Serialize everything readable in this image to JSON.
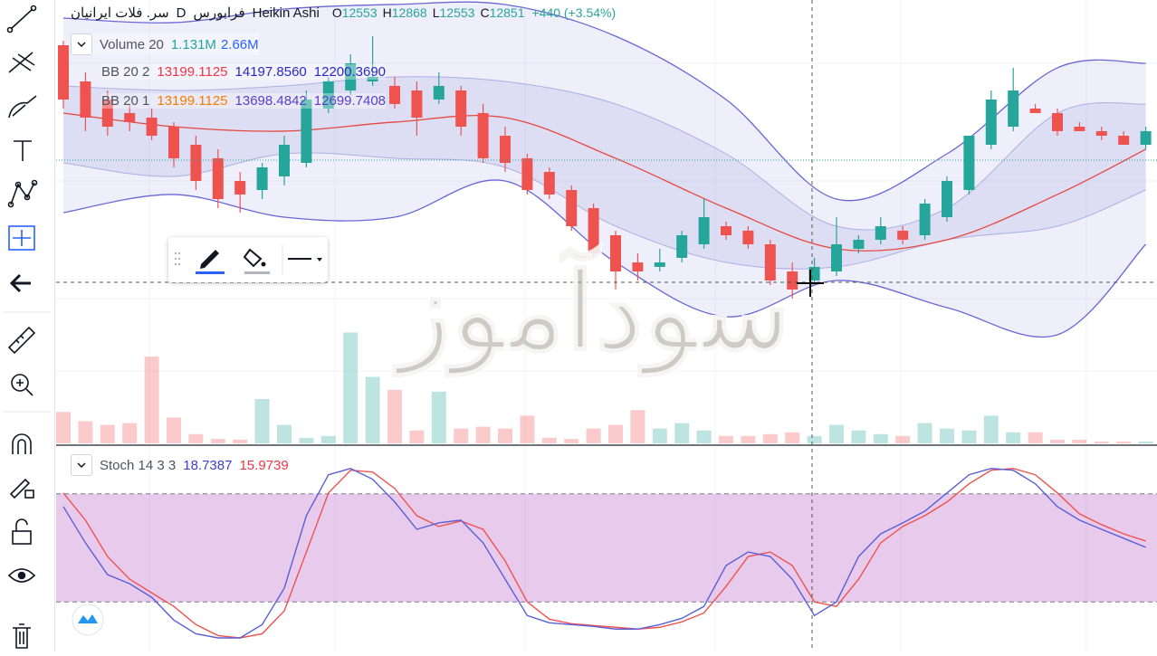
{
  "header": {
    "symbol": "سر. فلات ایرانیان",
    "interval": "D",
    "exchange": "فرابورس",
    "chart_style": "Heikin Ashi",
    "ohlc": [
      {
        "label": "O",
        "value": "12553"
      },
      {
        "label": "H",
        "value": "12868"
      },
      {
        "label": "L",
        "value": "12553"
      },
      {
        "label": "C",
        "value": "12851"
      }
    ],
    "change": "+440 (+3.54%)"
  },
  "legend": {
    "volume": {
      "name": "Volume 20",
      "values": [
        "1.131M",
        "2.66M"
      ]
    },
    "bb2": {
      "name": "BB 20 2",
      "values": [
        "13199.1125",
        "14197.8560",
        "12200.3690"
      ]
    },
    "bb1": {
      "name": "BB 20 1",
      "values": [
        "13199.1125",
        "13698.4842",
        "12699.7408"
      ]
    },
    "stoch": {
      "name": "Stoch 14 3 3",
      "values": [
        "18.7387",
        "15.9739"
      ]
    }
  },
  "watermark": "سودآموز",
  "chart": {
    "up_color": "#26a69a",
    "down_color": "#ef5350",
    "price_ylim": [
      9012,
      15137
    ],
    "candles": [
      [
        14512,
        14575,
        13637,
        13762
      ],
      [
        14012,
        14137,
        13325,
        13512
      ],
      [
        13762,
        13887,
        13262,
        13387
      ],
      [
        13575,
        13700,
        13325,
        13450
      ],
      [
        13512,
        13637,
        13200,
        13262
      ],
      [
        13387,
        13450,
        12825,
        12950
      ],
      [
        13137,
        13262,
        12512,
        12637
      ],
      [
        12950,
        13075,
        12262,
        12387
      ],
      [
        12637,
        12762,
        12200,
        12450
      ],
      [
        12512,
        12887,
        12387,
        12825
      ],
      [
        12700,
        13262,
        12575,
        13137
      ],
      [
        12887,
        13887,
        12825,
        13762
      ],
      [
        13637,
        14075,
        13575,
        14012
      ],
      [
        13887,
        14387,
        13825,
        14262
      ],
      [
        14012,
        14637,
        13950,
        14075
      ],
      [
        13950,
        14075,
        13637,
        13700
      ],
      [
        13887,
        14012,
        13262,
        13512
      ],
      [
        13762,
        14137,
        13700,
        13950
      ],
      [
        13887,
        13950,
        13262,
        13387
      ],
      [
        13575,
        13700,
        12887,
        12950
      ],
      [
        13262,
        13387,
        12762,
        12887
      ],
      [
        12950,
        13012,
        12450,
        12512
      ],
      [
        12762,
        12825,
        12387,
        12450
      ],
      [
        12512,
        12575,
        11950,
        12012
      ],
      [
        12262,
        12325,
        11575,
        11637
      ],
      [
        11887,
        11950,
        11137,
        11387
      ],
      [
        11512,
        11637,
        11262,
        11387
      ],
      [
        11450,
        11700,
        11387,
        11512
      ],
      [
        11575,
        11950,
        11512,
        11887
      ],
      [
        11762,
        12387,
        11700,
        12137
      ],
      [
        12012,
        12075,
        11825,
        11887
      ],
      [
        11950,
        12012,
        11700,
        11762
      ],
      [
        11762,
        11825,
        11200,
        11262
      ],
      [
        11387,
        11512,
        11012,
        11137
      ],
      [
        11262,
        11575,
        11200,
        11450
      ],
      [
        11387,
        12137,
        11325,
        11762
      ],
      [
        11700,
        11887,
        11637,
        11825
      ],
      [
        11825,
        12137,
        11762,
        12012
      ],
      [
        11950,
        12012,
        11762,
        11825
      ],
      [
        11887,
        12387,
        11825,
        12325
      ],
      [
        12137,
        12700,
        12075,
        12637
      ],
      [
        12512,
        13262,
        12450,
        13262
      ],
      [
        13137,
        13887,
        13075,
        13762
      ],
      [
        13387,
        14200,
        13325,
        13887
      ],
      [
        13637,
        13700,
        13575,
        13575
      ],
      [
        13575,
        13637,
        13262,
        13325
      ],
      [
        13387,
        13450,
        13325,
        13325
      ],
      [
        13325,
        13387,
        13200,
        13262
      ],
      [
        13262,
        13325,
        13137,
        13137
      ],
      [
        13137,
        13387,
        13075,
        13325
      ]
    ],
    "band_x": [
      0,
      5,
      10,
      15,
      20,
      25,
      30,
      35,
      40,
      45,
      49
    ],
    "bb2": {
      "upper": [
        14887,
        14825,
        15012,
        15075,
        15075,
        14637,
        13762,
        12387,
        13012,
        14200,
        14262
      ],
      "lower": [
        12200,
        12450,
        12137,
        12137,
        12637,
        11512,
        10762,
        11262,
        10887,
        10512,
        11762
      ]
    },
    "bb1": {
      "upper": [
        13950,
        13887,
        13950,
        14075,
        14012,
        13700,
        13012,
        12012,
        12262,
        13575,
        13700
      ],
      "lower": [
        12887,
        12700,
        13012,
        12950,
        12825,
        12012,
        11512,
        11450,
        11825,
        12012,
        12512
      ]
    },
    "basis": [
      13575,
      13387,
      13325,
      13450,
      13512,
      12950,
      12262,
      11700,
      11825,
      12450,
      13075
    ],
    "volume_ylim": [
      0,
      12
    ],
    "volume": [
      0.85,
      0.6,
      0.5,
      0.55,
      2.35,
      0.7,
      0.25,
      0.12,
      0.1,
      1.2,
      0.5,
      0.15,
      0.2,
      3.0,
      1.8,
      1.45,
      0.35,
      1.4,
      0.4,
      0.45,
      0.4,
      0.75,
      0.15,
      0.12,
      0.4,
      0.5,
      0.9,
      0.4,
      0.55,
      0.35,
      0.2,
      0.2,
      0.25,
      0.3,
      0.2,
      0.5,
      0.35,
      0.25,
      0.2,
      0.55,
      0.4,
      0.35,
      0.75,
      0.3,
      0.3,
      0.1,
      0.1,
      0.05,
      0.05,
      0.05
    ],
    "stoch": {
      "ylim": [
        0,
        100
      ],
      "upper_band": 80,
      "lower_band": 20,
      "k": [
        72.9,
        52.8,
        35.1,
        30.1,
        22.5,
        9.9,
        2.3,
        0,
        0,
        7.4,
        27.6,
        67.9,
        90.6,
        94.1,
        88.1,
        75.5,
        60.3,
        63.9,
        65.4,
        52.8,
        32.6,
        12.4,
        8.4,
        7.4,
        6.4,
        4.9,
        4.9,
        7.4,
        10.9,
        17.5,
        40.2,
        47.7,
        45.2,
        32.6,
        12.4,
        20,
        45.2,
        57.8,
        63.9,
        70.4,
        80.5,
        90.6,
        94.1,
        93.1,
        85.6,
        72.9,
        65.4,
        60.3,
        55.3,
        50.3
      ],
      "d": [
        80.5,
        65.4,
        45.2,
        32.6,
        25,
        17.5,
        7.4,
        1.3,
        0,
        2.3,
        15,
        47.7,
        80.5,
        93.1,
        92.1,
        83,
        67.9,
        61.9,
        64.9,
        60.3,
        42.7,
        20,
        10.4,
        7.9,
        6.9,
        5.9,
        4.9,
        5.9,
        8.9,
        13.9,
        28.6,
        45.2,
        47.7,
        40.2,
        20,
        17.5,
        32.6,
        52.8,
        61.9,
        67.9,
        75.5,
        85.6,
        93.1,
        94.1,
        90.6,
        80.5,
        68.9,
        62.9,
        57.8,
        53.8
      ]
    }
  }
}
